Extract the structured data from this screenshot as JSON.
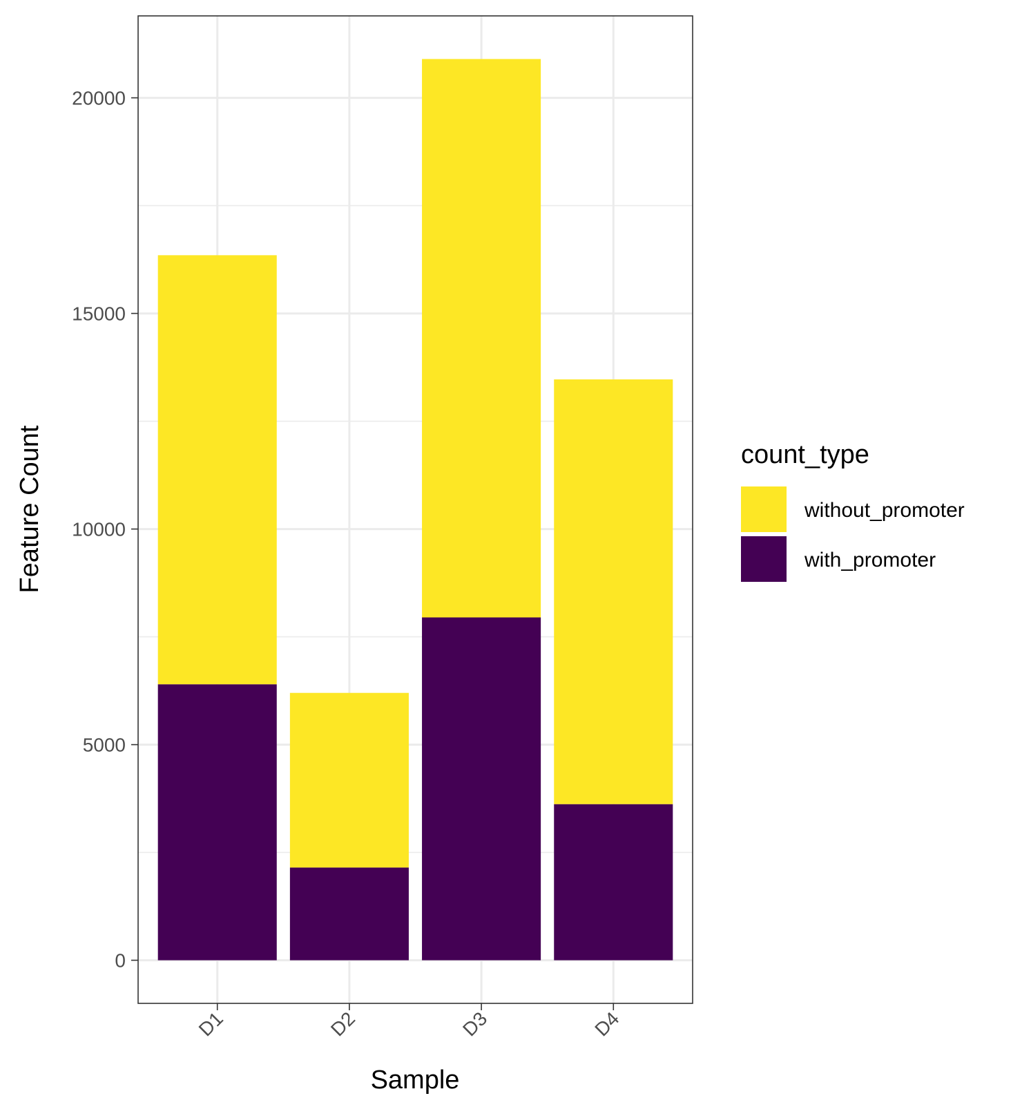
{
  "chart_data": {
    "type": "bar",
    "stacked": true,
    "categories": [
      "D1",
      "D2",
      "D3",
      "D4"
    ],
    "series": [
      {
        "name": "with_promoter",
        "values": [
          6400,
          2150,
          7950,
          3620
        ],
        "color": "#440154"
      },
      {
        "name": "without_promoter",
        "values": [
          9950,
          4050,
          12950,
          9850
        ],
        "color": "#FDE725"
      }
    ],
    "xlabel": "Sample",
    "ylabel": "Feature Count",
    "ylim": [
      -1000,
      21900
    ],
    "yticks": [
      0,
      5000,
      10000,
      15000,
      20000
    ],
    "ytick_labels": [
      "0",
      "5000",
      "10000",
      "15000",
      "20000"
    ],
    "grid": true,
    "legend": {
      "title": "count_type",
      "placement": "right",
      "entries": [
        {
          "label": "without_promoter",
          "color": "#FDE725"
        },
        {
          "label": "with_promoter",
          "color": "#440154"
        }
      ]
    }
  }
}
